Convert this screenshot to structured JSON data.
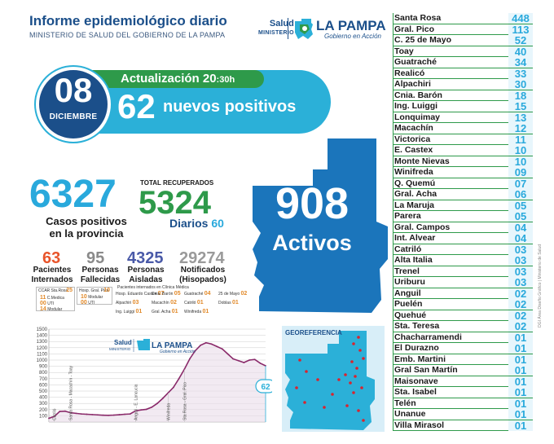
{
  "header": {
    "title": "Informe epidemiológico diario",
    "subtitle": "MINISTERIO DE SALUD DEL GOBIERNO DE LA PAMPA",
    "logo_salud": "Salud",
    "logo_ministerio": "MINISTERIO",
    "logo_lapampa": "LA PAMPA",
    "logo_gobierno": "Gobierno en Acción"
  },
  "update": {
    "label": "Actualización",
    "time_hours": "20",
    "time_minutes": ":30h",
    "day": "08",
    "month": "DICIEMBRE",
    "new_positives": "62",
    "new_positives_label": "nuevos positivos"
  },
  "map": {
    "active_count": "908",
    "active_label": "Activos"
  },
  "stats": {
    "cases_total": "6327",
    "cases_label_1": "Casos positivos",
    "cases_label_2": "en la provincia",
    "recovered_title": "TOTAL RECUPERADOS",
    "recovered_total": "5324",
    "recovered_daily_label": "Diarios",
    "recovered_daily": "60",
    "hospitalized": "63",
    "hospitalized_label_1": "Pacientes",
    "hospitalized_label_2": "Internados",
    "deceased": "95",
    "deceased_label_1": "Personas",
    "deceased_label_2": "Fallecidas",
    "isolated": "4325",
    "isolated_label_1": "Personas",
    "isolated_label_2": "Aisladas",
    "notified": "29274",
    "notified_label_1": "Notificados",
    "notified_label_2": "(Hisopados)"
  },
  "hospital_detail": {
    "ccar_label": "CCAR Sta.Rosa",
    "ccar_count": "25",
    "ccar_sub": [
      {
        "count": "11",
        "label": "C.Medica"
      },
      {
        "count": "00",
        "label": "UTI"
      },
      {
        "count": "14",
        "label": "Modular"
      }
    ],
    "gpico_label": "Hosp. Gral. Pico",
    "gpico_count": "10",
    "gpico_sub": [
      {
        "count": "10",
        "label": "Modular"
      },
      {
        "count": "00",
        "label": "UTI"
      }
    ],
    "caption": "Pacientes internados en Clínica Médica",
    "items": [
      {
        "label": "Hosp. Eduardo Castex",
        "count": "07"
      },
      {
        "label": "Cnia. Barón",
        "count": "05"
      },
      {
        "label": "Guatraché",
        "count": "04"
      },
      {
        "label": "25 de Mayo",
        "count": "02"
      },
      {
        "label": "Alpachiri",
        "count": "03"
      },
      {
        "label": "Macachín",
        "count": "02"
      },
      {
        "label": "Catriló",
        "count": "01"
      },
      {
        "label": "Doblas",
        "count": "01"
      },
      {
        "label": "Ing. Luiggi",
        "count": "01"
      },
      {
        "label": "Gral. Acha",
        "count": "01"
      },
      {
        "label": "Winifreda",
        "count": "01"
      }
    ]
  },
  "chart_data": {
    "type": "line",
    "title": "",
    "xlabel": "",
    "ylabel": "",
    "ylim": [
      0,
      1500
    ],
    "yticks": [
      100,
      200,
      300,
      400,
      500,
      600,
      700,
      800,
      900,
      1000,
      1100,
      1200,
      1300,
      1400,
      1500
    ],
    "x": [
      0,
      1,
      2,
      3,
      4,
      5,
      6,
      7,
      8,
      9,
      10,
      11,
      12,
      13,
      14,
      15,
      16,
      17,
      18,
      19,
      20,
      21,
      22,
      23,
      24,
      25,
      26,
      27,
      28,
      29,
      30,
      31,
      32,
      33,
      34,
      35,
      36,
      37,
      38,
      39,
      40
    ],
    "series": [
      {
        "values": [
          60,
          90,
          170,
          175,
          150,
          140,
          130,
          125,
          120,
          115,
          110,
          108,
          112,
          118,
          125,
          130,
          180,
          195,
          205,
          240,
          300,
          380,
          470,
          560,
          700,
          850,
          1020,
          1150,
          1240,
          1280,
          1260,
          1220,
          1180,
          1100,
          1020,
          990,
          960,
          1000,
          1010,
          950,
          908
        ]
      }
    ],
    "annotations": [
      "Catriló",
      "Santa Rosa - Macachín - Toay",
      "Anguil - E. Lancucia",
      "Winifreda",
      "Sta Rosa - Gral. Pico",
      "62"
    ],
    "logo_salud": "Salud",
    "logo_ministerio": "MINISTERIO",
    "logo_lapampa": "LA PAMPA",
    "logo_gobierno": "Gobierno en Acción"
  },
  "georef": {
    "title": "GEOREFERENCIA"
  },
  "localities": [
    {
      "name": "Santa Rosa",
      "count": "448"
    },
    {
      "name": "Gral. Pico",
      "count": "113"
    },
    {
      "name": "C. 25 de Mayo",
      "count": "52"
    },
    {
      "name": "Toay",
      "count": "40"
    },
    {
      "name": "Guatraché",
      "count": "34"
    },
    {
      "name": "Realicó",
      "count": "33"
    },
    {
      "name": "Alpachiri",
      "count": "30"
    },
    {
      "name": "Cnia. Barón",
      "count": "18"
    },
    {
      "name": "Ing. Luiggi",
      "count": "15"
    },
    {
      "name": "Lonquimay",
      "count": "13"
    },
    {
      "name": "Macachín",
      "count": "12"
    },
    {
      "name": "Victorica",
      "count": "11"
    },
    {
      "name": "E. Castex",
      "count": "10"
    },
    {
      "name": "Monte Nievas",
      "count": "10"
    },
    {
      "name": "Winifreda",
      "count": "09"
    },
    {
      "name": "Q. Quemú",
      "count": "07"
    },
    {
      "name": "Gral. Acha",
      "count": "06"
    },
    {
      "name": "La Maruja",
      "count": "05"
    },
    {
      "name": "Parera",
      "count": "05"
    },
    {
      "name": "Gral. Campos",
      "count": "04"
    },
    {
      "name": "Int. Alvear",
      "count": "04"
    },
    {
      "name": "Catriló",
      "count": "03"
    },
    {
      "name": "Alta Italia",
      "count": "03"
    },
    {
      "name": "Trenel",
      "count": "03"
    },
    {
      "name": "Uriburu",
      "count": "03"
    },
    {
      "name": "Anguil",
      "count": "02"
    },
    {
      "name": "Puelén",
      "count": "02"
    },
    {
      "name": "Quehué",
      "count": "02"
    },
    {
      "name": "Sta. Teresa",
      "count": "02"
    },
    {
      "name": "Chacharramendi",
      "count": "01"
    },
    {
      "name": "El Durazno",
      "count": "01"
    },
    {
      "name": "Emb. Martini",
      "count": "01"
    },
    {
      "name": "Gral San Martín",
      "count": "01"
    },
    {
      "name": "Maisonave",
      "count": "01"
    },
    {
      "name": "Sta. Isabel",
      "count": "01"
    },
    {
      "name": "Telén",
      "count": "01"
    },
    {
      "name": "Unanue",
      "count": "01"
    },
    {
      "name": "Villa Mirasol",
      "count": "01"
    }
  ],
  "side_note": "DGI Área Diseño Gráfico | Ministerio de Salud",
  "colors": {
    "dark_blue": "#1b4f8a",
    "light_blue": "#29a9dc",
    "green": "#2e9a4a",
    "orange": "#e8542a",
    "purple": "#4a5aa8",
    "gray": "#8a8a8a",
    "chart_line": "#8a2a6a"
  }
}
